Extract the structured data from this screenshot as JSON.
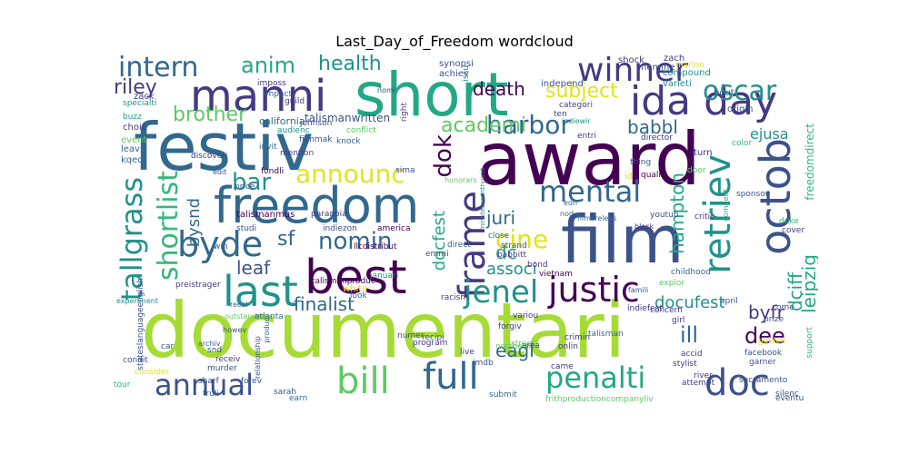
{
  "title": "Last_Day_of_Freedom wordcloud",
  "palette": {
    "lime": "#a6db35",
    "green": "#5ec962",
    "teal": "#21918c",
    "bluegreen": "#22a884",
    "steel": "#31688e",
    "indigo": "#3b528b",
    "purple": "#440154",
    "darkblue": "#443983",
    "yellow": "#e3e41a",
    "seagreen": "#35b779"
  },
  "words": [
    {
      "text": "documentari",
      "color": "lime"
    },
    {
      "text": "award",
      "color": "purple"
    },
    {
      "text": "festiv",
      "color": "steel"
    },
    {
      "text": "short",
      "color": "bluegreen"
    },
    {
      "text": "film",
      "color": "indigo"
    },
    {
      "text": "freedom",
      "color": "steel"
    },
    {
      "text": "best",
      "color": "purple"
    },
    {
      "text": "manni",
      "color": "darkblue"
    },
    {
      "text": "ida day",
      "color": "darkblue"
    },
    {
      "text": "octob",
      "color": "indigo"
    },
    {
      "text": "frame",
      "color": "darkblue"
    },
    {
      "text": "mental",
      "color": "steel"
    },
    {
      "text": "justic",
      "color": "purple"
    },
    {
      "text": "retriev",
      "color": "teal"
    },
    {
      "text": "last",
      "color": "teal"
    },
    {
      "text": "byde",
      "color": "steel"
    },
    {
      "text": "winner",
      "color": "darkblue"
    },
    {
      "text": "tallgrass",
      "color": "teal"
    },
    {
      "text": "shortlist",
      "color": "seagreen"
    },
    {
      "text": "bill",
      "color": "green"
    },
    {
      "text": "full",
      "color": "steel"
    },
    {
      "text": "doc",
      "color": "indigo"
    },
    {
      "text": "annual",
      "color": "indigo"
    },
    {
      "text": "penalti",
      "color": "bluegreen"
    },
    {
      "text": "jenel",
      "color": "teal"
    },
    {
      "text": "oscar",
      "color": "teal"
    },
    {
      "text": "intern",
      "color": "steel"
    },
    {
      "text": "announc",
      "color": "yellow"
    },
    {
      "text": "harbor",
      "color": "steel"
    },
    {
      "text": "dok",
      "color": "purple"
    },
    {
      "text": "nomin",
      "color": "steel"
    },
    {
      "text": "bar",
      "color": "teal"
    },
    {
      "text": "cine",
      "color": "yellow"
    },
    {
      "text": "anim",
      "color": "bluegreen"
    },
    {
      "text": "health",
      "color": "teal"
    },
    {
      "text": "death",
      "color": "purple"
    },
    {
      "text": "subject",
      "color": "yellow"
    },
    {
      "text": "riley",
      "color": "darkblue"
    },
    {
      "text": "brother",
      "color": "green"
    },
    {
      "text": "academi",
      "color": "green"
    },
    {
      "text": "babbl",
      "color": "steel"
    },
    {
      "text": "hampton",
      "color": "bluegreen"
    },
    {
      "text": "leipzig",
      "color": "bluegreen"
    },
    {
      "text": "dciff",
      "color": "bluegreen"
    },
    {
      "text": "dee",
      "color": "purple"
    },
    {
      "text": "ill",
      "color": "steel"
    },
    {
      "text": "byfr",
      "color": "darkblue"
    },
    {
      "text": "finalist",
      "color": "steel"
    },
    {
      "text": "eagl",
      "color": "steel"
    },
    {
      "text": "docufest",
      "color": "teal"
    },
    {
      "text": "juri",
      "color": "steel"
    },
    {
      "text": "associ",
      "color": "teal"
    },
    {
      "text": "dc",
      "color": "bluegreen"
    },
    {
      "text": "docfest",
      "color": "bluegreen"
    },
    {
      "text": "sf",
      "color": "steel"
    },
    {
      "text": "leaf",
      "color": "indigo"
    },
    {
      "text": "bysnd",
      "color": "steel"
    },
    {
      "text": "ejusa",
      "color": "teal"
    },
    {
      "text": "freedomdirect",
      "color": "seagreen"
    },
    {
      "text": "talismanwritten",
      "color": "indigo"
    },
    {
      "text": "california",
      "color": "steel"
    },
    {
      "text": "independ",
      "color": "indigo"
    },
    {
      "text": "compound",
      "color": "teal"
    },
    {
      "text": "varieti",
      "color": "teal"
    },
    {
      "text": "marlon",
      "color": "yellow"
    },
    {
      "text": "zach",
      "color": "darkblue"
    },
    {
      "text": "origin",
      "color": "indigo"
    },
    {
      "text": "synopsi",
      "color": "indigo"
    },
    {
      "text": "achiev",
      "color": "indigo"
    },
    {
      "text": "shock",
      "color": "darkblue"
    },
    {
      "text": "nomine",
      "color": "indigo"
    },
    {
      "text": "bout",
      "color": "indigo"
    },
    {
      "text": "zack",
      "color": "darkblue"
    },
    {
      "text": "choic",
      "color": "darkblue"
    },
    {
      "text": "specialti",
      "color": "teal"
    },
    {
      "text": "buzz",
      "color": "bluegreen"
    },
    {
      "text": "event",
      "color": "green"
    },
    {
      "text": "leav",
      "color": "steel"
    },
    {
      "text": "kqed",
      "color": "steel"
    },
    {
      "text": "impact",
      "color": "steel"
    },
    {
      "text": "imposs",
      "color": "darkblue"
    },
    {
      "text": "guild",
      "color": "darkblue"
    },
    {
      "text": "nomi",
      "color": "indigo"
    },
    {
      "text": "issu",
      "color": "teal"
    },
    {
      "text": "ten",
      "color": "darkblue"
    },
    {
      "text": "categori",
      "color": "darkblue"
    },
    {
      "text": "indiewir",
      "color": "teal"
    },
    {
      "text": "entri",
      "color": "darkblue"
    },
    {
      "text": "director",
      "color": "darkblue"
    },
    {
      "text": "turn",
      "color": "darkblue"
    },
    {
      "text": "door",
      "color": "green"
    },
    {
      "text": "color",
      "color": "seagreen"
    },
    {
      "text": "johnson",
      "color": "indigo"
    },
    {
      "text": "audienc",
      "color": "teal"
    },
    {
      "text": "filmmak",
      "color": "indigo"
    },
    {
      "text": "knock",
      "color": "steel"
    },
    {
      "text": "conflict",
      "color": "green"
    },
    {
      "text": "invit",
      "color": "steel"
    },
    {
      "text": "mention",
      "color": "darkblue"
    },
    {
      "text": "discoveri",
      "color": "darkblue"
    },
    {
      "text": "edit",
      "color": "indigo"
    },
    {
      "text": "fondli",
      "color": "purple"
    },
    {
      "text": "sima",
      "color": "indigo"
    },
    {
      "text": "thing",
      "color": "indigo"
    },
    {
      "text": "qualifi",
      "color": "purple"
    },
    {
      "text": "price",
      "color": "indigo"
    },
    {
      "text": "talismanmus",
      "color": "purple"
    },
    {
      "text": "paranoia",
      "color": "darkblue"
    },
    {
      "text": "honorars",
      "color": "green"
    },
    {
      "text": "minutescountryunit",
      "color": "teal"
    },
    {
      "text": "id",
      "color": "yellow"
    },
    {
      "text": "competit",
      "color": "seagreen"
    },
    {
      "text": "sponsor",
      "color": "indigo"
    },
    {
      "text": "youtub",
      "color": "indigo"
    },
    {
      "text": "critic",
      "color": "darkblue"
    },
    {
      "text": "duke",
      "color": "seagreen"
    },
    {
      "text": "cover",
      "color": "darkblue"
    },
    {
      "text": "edn",
      "color": "steel"
    },
    {
      "text": "nod",
      "color": "steel"
    },
    {
      "text": "filmsreleas",
      "color": "steel"
    },
    {
      "text": "black",
      "color": "darkblue"
    },
    {
      "text": "studi",
      "color": "indigo"
    },
    {
      "text": "indiezon",
      "color": "indigo"
    },
    {
      "text": "america",
      "color": "purple"
    },
    {
      "text": "win",
      "color": "indigo"
    },
    {
      "text": "llcdistribut",
      "color": "purple"
    },
    {
      "text": "emmi",
      "color": "indigo"
    },
    {
      "text": "direct",
      "color": "steel"
    },
    {
      "text": "close",
      "color": "steel"
    },
    {
      "text": "strand",
      "color": "indigo"
    },
    {
      "text": "babbitt",
      "color": "darkblue"
    },
    {
      "text": "bond",
      "color": "darkblue"
    },
    {
      "text": "vietnam",
      "color": "purple"
    },
    {
      "text": "talismanproduc",
      "color": "purple"
    },
    {
      "text": "racism",
      "color": "darkblue"
    },
    {
      "text": "famili",
      "color": "indigo"
    },
    {
      "text": "explor",
      "color": "green"
    },
    {
      "text": "childhood",
      "color": "steel"
    },
    {
      "text": "recal",
      "color": "steel"
    },
    {
      "text": "outstand",
      "color": "green"
    },
    {
      "text": "howev",
      "color": "indigo"
    },
    {
      "text": "variou",
      "color": "darkblue"
    },
    {
      "text": "forgiv",
      "color": "darkblue"
    },
    {
      "text": "concern",
      "color": "darkblue"
    },
    {
      "text": "april",
      "color": "indigo"
    },
    {
      "text": "come",
      "color": "indigo"
    },
    {
      "text": "girl",
      "color": "darkblue"
    },
    {
      "text": "prize",
      "color": "indigo"
    },
    {
      "text": "preistrager",
      "color": "darkblue"
    },
    {
      "text": "stateslanguageenglish",
      "color": "indigo"
    },
    {
      "text": "experiment",
      "color": "teal"
    },
    {
      "text": "atlanta",
      "color": "steel"
    },
    {
      "text": "recipi",
      "color": "indigo"
    },
    {
      "text": "street",
      "color": "green"
    },
    {
      "text": "northern",
      "color": "green"
    },
    {
      "text": "snd",
      "color": "indigo"
    },
    {
      "text": "produc",
      "color": "steel"
    },
    {
      "text": "receiv",
      "color": "darkblue"
    },
    {
      "text": "murder",
      "color": "indigo"
    },
    {
      "text": "archiv",
      "color": "steel"
    },
    {
      "text": "car",
      "color": "indigo"
    },
    {
      "text": "relationship",
      "color": "indigo"
    },
    {
      "text": "condit",
      "color": "indigo"
    },
    {
      "text": "consider",
      "color": "yellow"
    },
    {
      "text": "tour",
      "color": "seagreen"
    },
    {
      "text": "sharf",
      "color": "indigo"
    },
    {
      "text": "forev",
      "color": "indigo"
    },
    {
      "text": "sarah",
      "color": "indigo"
    },
    {
      "text": "truli",
      "color": "steel"
    },
    {
      "text": "earn",
      "color": "steel"
    },
    {
      "text": "imdb",
      "color": "indigo"
    },
    {
      "text": "numer",
      "color": "indigo"
    },
    {
      "text": "program",
      "color": "darkblue"
    },
    {
      "text": "live",
      "color": "darkblue"
    },
    {
      "text": "submit",
      "color": "steel"
    },
    {
      "text": "area",
      "color": "indigo"
    },
    {
      "text": "came",
      "color": "darkblue"
    },
    {
      "text": "crimin",
      "color": "darkblue"
    },
    {
      "text": "onlin",
      "color": "darkblue"
    },
    {
      "text": "talisman",
      "color": "steel"
    },
    {
      "text": "indiefest",
      "color": "darkblue"
    },
    {
      "text": "accid",
      "color": "darkblue"
    },
    {
      "text": "stylist",
      "color": "darkblue"
    },
    {
      "text": "attempt",
      "color": "darkblue"
    },
    {
      "text": "river",
      "color": "darkblue"
    },
    {
      "text": "sacramento",
      "color": "indigo"
    },
    {
      "text": "facebook",
      "color": "indigo"
    },
    {
      "text": "garner",
      "color": "indigo"
    },
    {
      "text": "golden",
      "color": "yellow"
    },
    {
      "text": "support",
      "color": "seagreen"
    },
    {
      "text": "silenc",
      "color": "indigo"
    },
    {
      "text": "eventu",
      "color": "indigo"
    },
    {
      "text": "frithproductioncompanyliv",
      "color": "green"
    },
    {
      "text": "januari",
      "color": "teal"
    },
    {
      "text": "white",
      "color": "yellow"
    },
    {
      "text": "look",
      "color": "steel"
    },
    {
      "text": "right",
      "color": "darkblue"
    }
  ]
}
